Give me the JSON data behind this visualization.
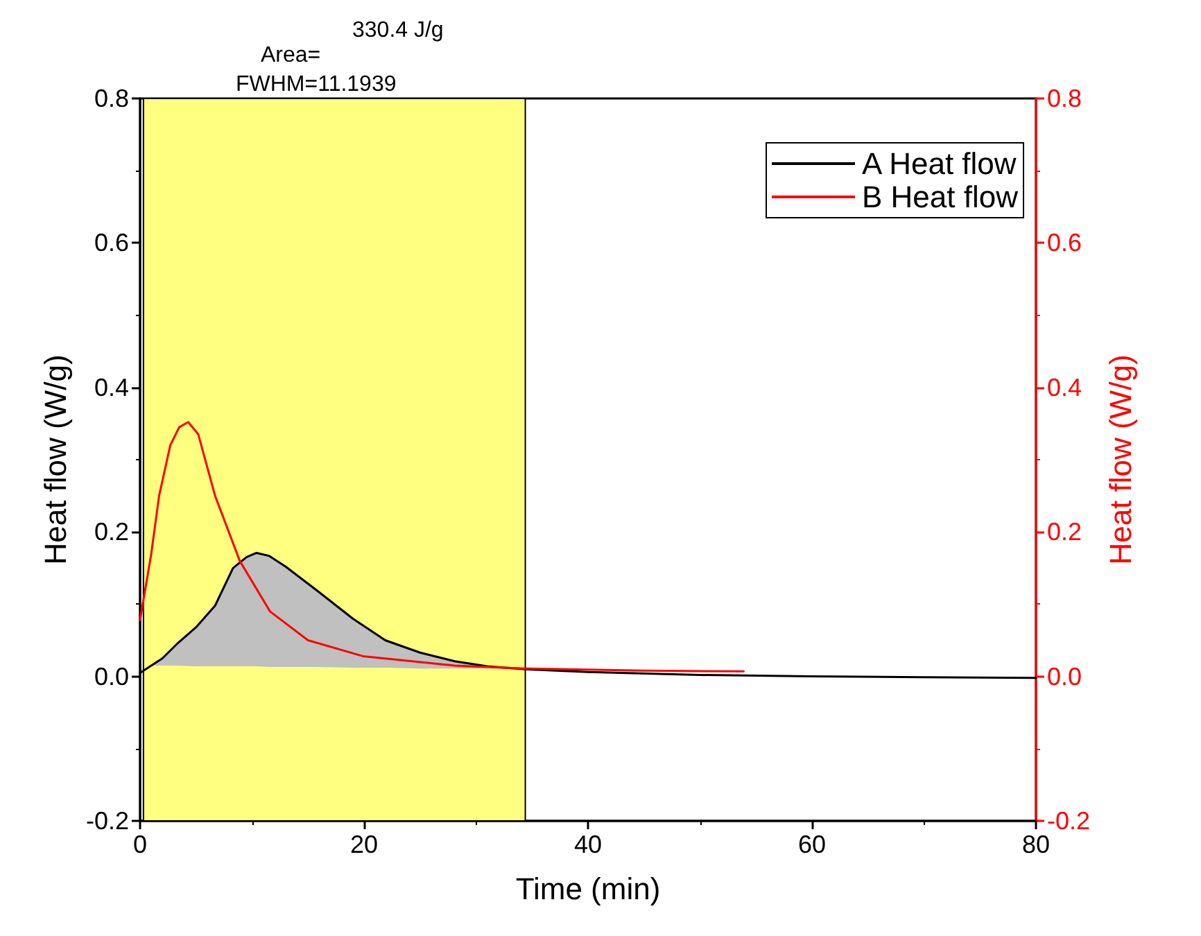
{
  "chart_data": {
    "type": "line",
    "xlabel": "Time (min)",
    "ylabel": "Heat flow (W/g)",
    "y2label": "Heat flow (W/g)",
    "annotations": [
      "Area=",
      "330.4 J/g",
      "FWHM=11.1939"
    ],
    "xlim": [
      0,
      80
    ],
    "xticks": [
      0,
      20,
      40,
      60,
      80
    ],
    "ylim": [
      -0.2,
      0.8
    ],
    "yticks": [
      {
        "value": -0.2,
        "label": "-0.2"
      },
      {
        "value": 0,
        "label": "0.0"
      },
      {
        "value": 0.2,
        "label": "0.2"
      },
      {
        "value": 0.4,
        "label": "0.4"
      },
      {
        "value": 0.6,
        "label": "0.6"
      },
      {
        "value": 0.8,
        "label": "0.8"
      }
    ],
    "y2lim": [
      -0.2,
      0.8
    ],
    "y2ticks": [
      {
        "value": -0.2,
        "label": "-0.2"
      },
      {
        "value": 0,
        "label": "0.0"
      },
      {
        "value": 0.2,
        "label": "0.2"
      },
      {
        "value": 0.4,
        "label": "0.4"
      },
      {
        "value": 0.6,
        "label": "0.6"
      },
      {
        "value": 0.8,
        "label": "0.8"
      }
    ],
    "bands": [
      {
        "axis": "x",
        "from": 0.3,
        "to": 34.4,
        "color": "#ffff80"
      }
    ],
    "grid": false,
    "legend": "top right",
    "marker": "none",
    "line_style": "solid",
    "series": [
      {
        "name": "A Heat flow",
        "color": "#000000",
        "x": [
          0,
          1,
          2,
          3.3,
          5,
          6.7,
          8.3,
          9.5,
          10.4,
          11.5,
          13,
          15.7,
          19,
          21.9,
          25,
          28.1,
          31,
          34.4,
          40,
          50,
          60,
          70,
          80
        ],
        "values": [
          0.005,
          0.015,
          0.025,
          0.045,
          0.068,
          0.098,
          0.15,
          0.165,
          0.171,
          0.167,
          0.152,
          0.12,
          0.08,
          0.05,
          0.033,
          0.021,
          0.014,
          0.01,
          0.006,
          0.002,
          0,
          -0.001,
          -0.002
        ],
        "lower": [
          null,
          0.015,
          0.015,
          0.015,
          0.014,
          0.014,
          0.014,
          0.014,
          0.014,
          0.013,
          0.013,
          0.013,
          0.012,
          0.012,
          0.011,
          0.011,
          0.011,
          0.01,
          null,
          null,
          null,
          null,
          null
        ],
        "upper": [
          null,
          0.015,
          0.025,
          0.045,
          0.068,
          0.098,
          0.15,
          0.165,
          0.171,
          0.167,
          0.152,
          0.12,
          0.08,
          0.05,
          0.033,
          0.021,
          0.014,
          0.01,
          null,
          null,
          null,
          null,
          null
        ]
      },
      {
        "name": "B Heat flow",
        "color": "#ff0000",
        "axis": "y2",
        "x": [
          0,
          1,
          1.7,
          2.7,
          3.5,
          4.3,
          5.2,
          6.7,
          8.9,
          11.6,
          15,
          19.9,
          28.1,
          34.4,
          45,
          53.9
        ],
        "values": [
          0.078,
          0.17,
          0.25,
          0.32,
          0.345,
          0.352,
          0.335,
          0.25,
          0.16,
          0.09,
          0.05,
          0.028,
          0.015,
          0.011,
          0.008,
          0.007
        ]
      }
    ]
  }
}
